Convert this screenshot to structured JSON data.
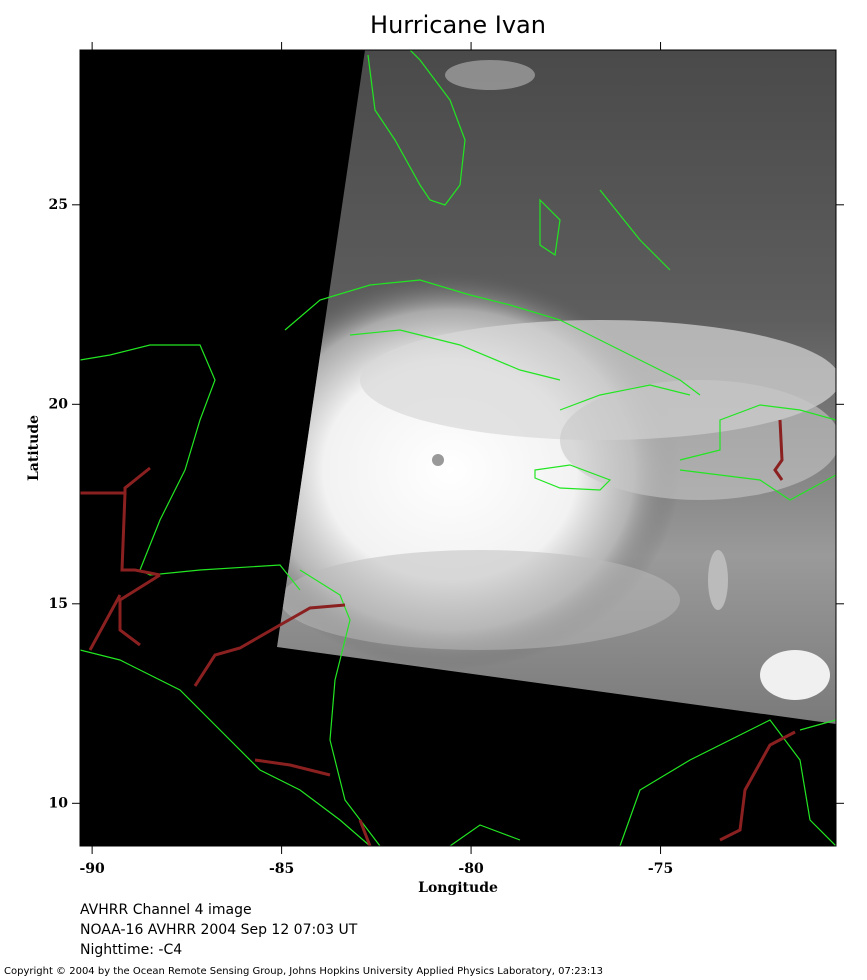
{
  "map": {
    "title": "Hurricane Ivan",
    "xlabel": "Longitude",
    "ylabel": "Latitude",
    "xlim": [
      -90.32,
      -70.37
    ],
    "ylim": [
      8.93,
      28.88
    ],
    "xticks": [
      -90,
      -85,
      -80,
      -75
    ],
    "yticks": [
      10,
      15,
      20,
      25
    ]
  },
  "caption": [
    "AVHRR Channel 4 image",
    "NOAA-16 AVHRR 2004 Sep 12 07:03 UT",
    "Nighttime: -C4"
  ],
  "copyright": "Copyright © 2004 by the Ocean Remote Sensing Group, Johns Hopkins University Applied Physics Laboratory, 07:23:13"
}
